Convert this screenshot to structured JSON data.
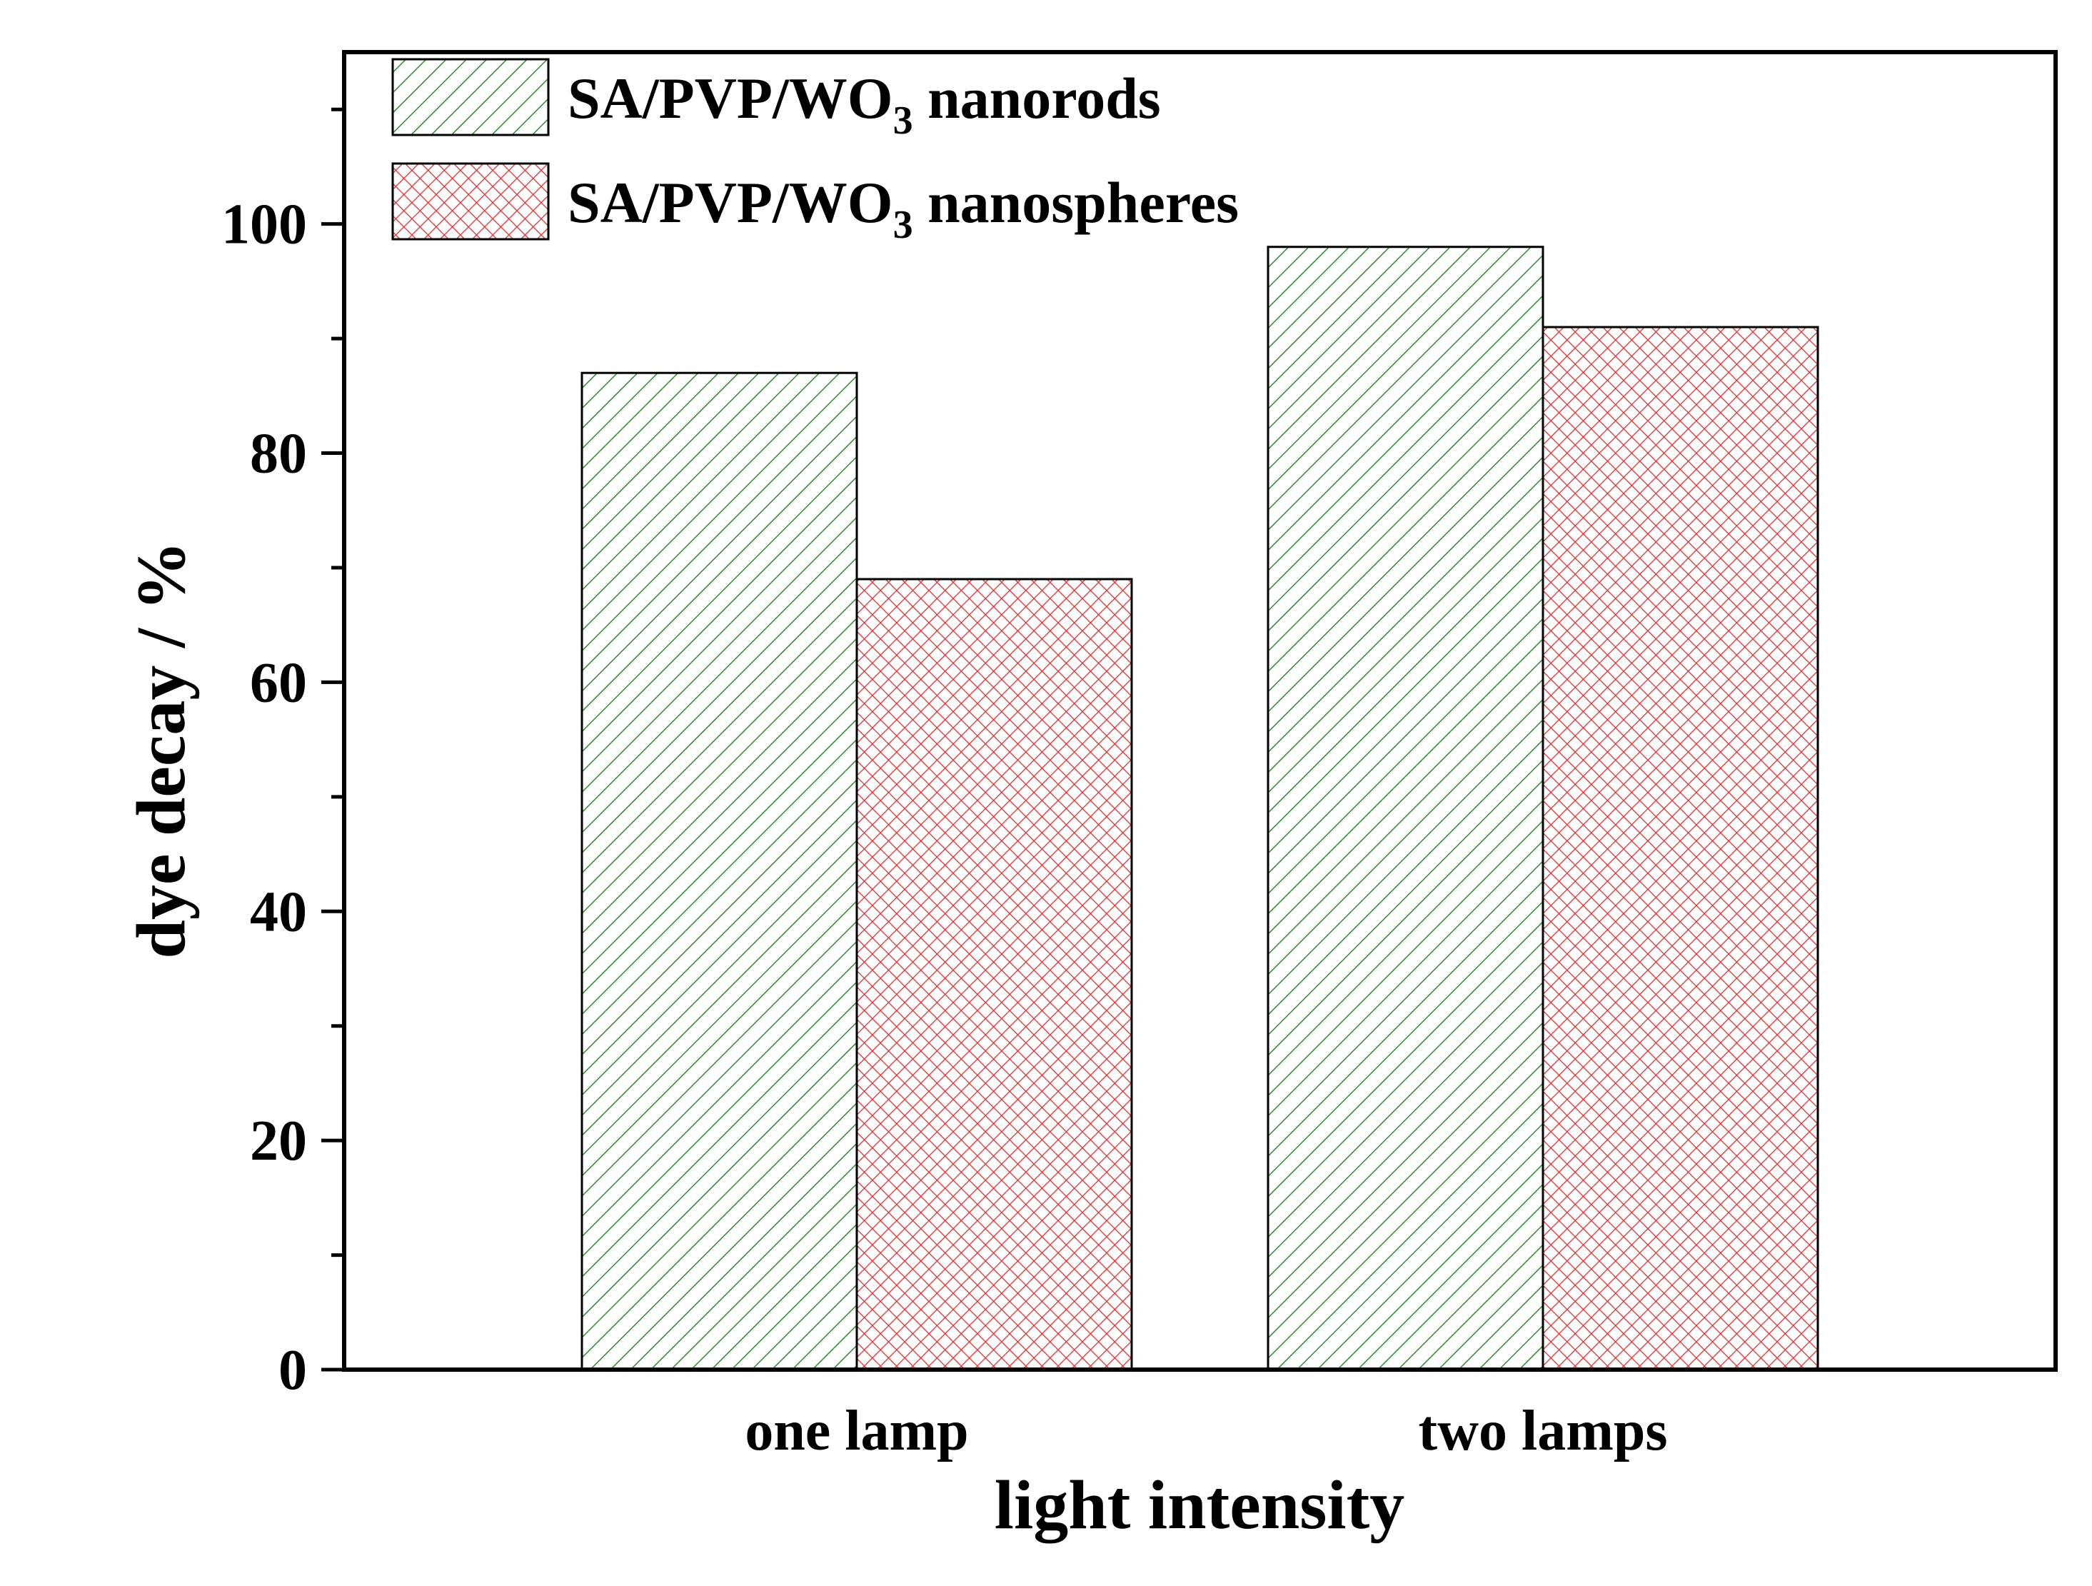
{
  "chart_data": {
    "type": "bar",
    "title": "",
    "xlabel": "light intensity",
    "ylabel": "dye decay / %",
    "categories": [
      "one lamp",
      "two lamps"
    ],
    "ylim": [
      0,
      115
    ],
    "yticks": [
      0,
      20,
      40,
      60,
      80,
      100
    ],
    "y_minor_step": 10,
    "legend_position": "top-left",
    "series": [
      {
        "name": "SA/PVP/WO3 nanorods",
        "legend_main": "SA/PVP/WO",
        "legend_sub": "3",
        "legend_tail": " nanorods",
        "values": [
          87,
          98
        ],
        "color": "#2e8b2e",
        "pattern": "diagonal-hatch"
      },
      {
        "name": "SA/PVP/WO3 nanospheres",
        "legend_main": "SA/PVP/WO",
        "legend_sub": "3",
        "legend_tail": " nanospheres",
        "values": [
          69,
          91
        ],
        "color": "#e03030",
        "pattern": "cross-hatch"
      }
    ]
  }
}
